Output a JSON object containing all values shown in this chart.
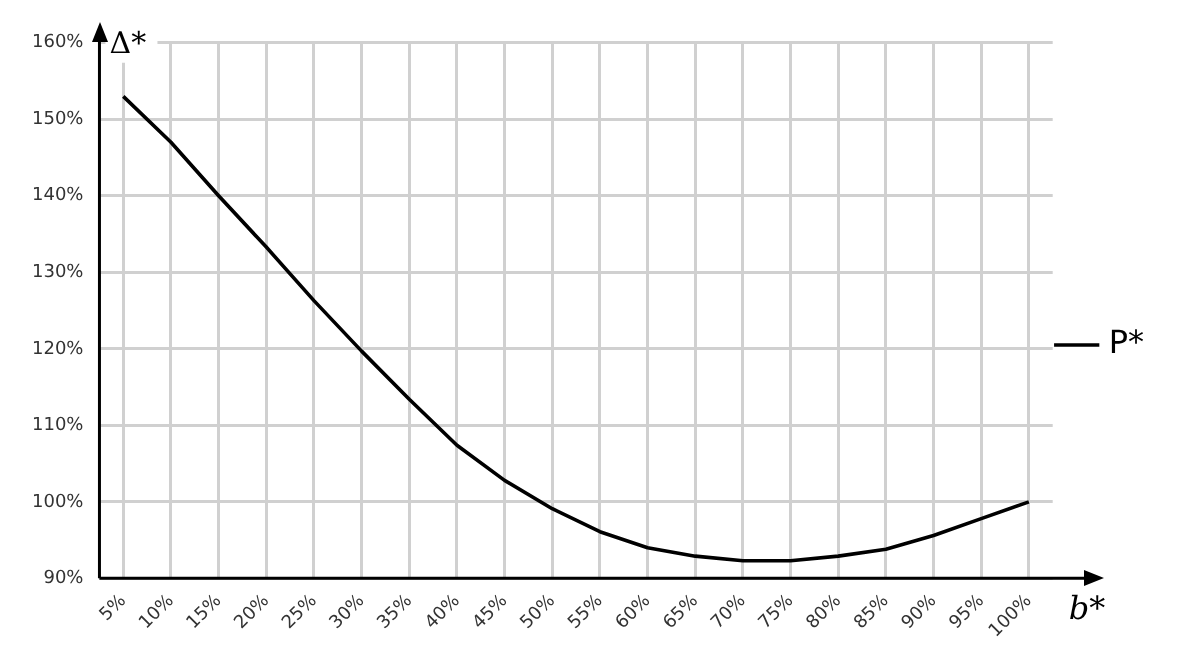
{
  "chart_data": {
    "type": "line",
    "xlabel": "b*",
    "ylabel": "Δ*",
    "categories": [
      "5%",
      "10%",
      "15%",
      "20%",
      "25%",
      "30%",
      "35%",
      "40%",
      "45%",
      "50%",
      "55%",
      "60%",
      "65%",
      "70%",
      "75%",
      "80%",
      "85%",
      "90%",
      "95%",
      "100%"
    ],
    "series": [
      {
        "name": "P*",
        "color": "#000000",
        "values": [
          153,
          147,
          140,
          133.3,
          126.3,
          119.7,
          113.4,
          107.4,
          102.8,
          99.1,
          96.1,
          94,
          92.9,
          92.3,
          92.3,
          92.9,
          93.8,
          95.6,
          97.8,
          100
        ]
      }
    ],
    "ylim": [
      90,
      160
    ],
    "yticks": [
      {
        "value": 90,
        "label": "90%"
      },
      {
        "value": 100,
        "label": "100%"
      },
      {
        "value": 110,
        "label": "110%"
      },
      {
        "value": 120,
        "label": "120%"
      },
      {
        "value": 130,
        "label": "130%"
      },
      {
        "value": 140,
        "label": "140%"
      },
      {
        "value": 150,
        "label": "150%"
      },
      {
        "value": 160,
        "label": "160%"
      }
    ],
    "grid": true,
    "legend": "right",
    "marker": "none",
    "line_style": "solid"
  }
}
